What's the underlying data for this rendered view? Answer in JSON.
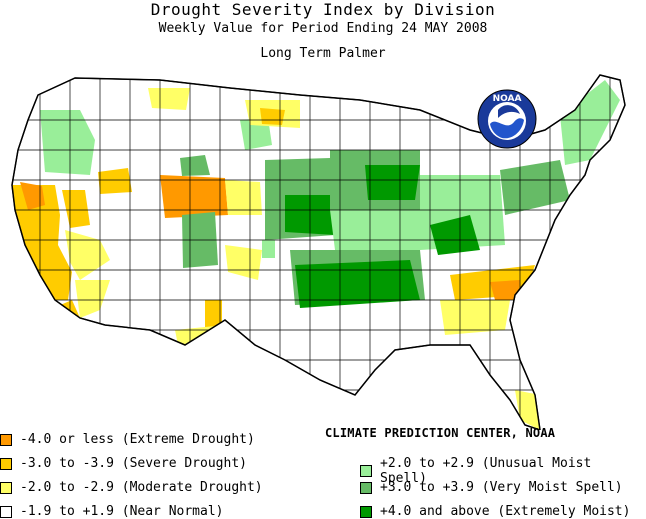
{
  "titles": {
    "main": "Drought Severity Index by Division",
    "sub": "Weekly Value for Period Ending 24 MAY 2008",
    "index": "Long Term Palmer"
  },
  "logo": {
    "text": "NOAA"
  },
  "credit": "CLIMATE PREDICTION CENTER, NOAA",
  "colors": {
    "extreme_drought": "#ff9900",
    "severe_drought": "#ffcc00",
    "moderate_drought": "#ffff66",
    "near_normal": "#ffffff",
    "unusual_moist": "#99ee99",
    "very_moist": "#66bb66",
    "extremely_moist": "#009900"
  },
  "legend": {
    "left": [
      {
        "label": "-4.0 or less (Extreme Drought)",
        "color": "#ff9900"
      },
      {
        "label": "-3.0 to -3.9 (Severe Drought)",
        "color": "#ffcc00"
      },
      {
        "label": "-2.0 to -2.9 (Moderate Drought)",
        "color": "#ffff66"
      },
      {
        "label": "-1.9 to +1.9 (Near Normal)",
        "color": "#ffffff"
      }
    ],
    "right": [
      {
        "label": "+2.0 to +2.9 (Unusual Moist Spell)",
        "color": "#99ee99"
      },
      {
        "label": "+3.0 to +3.9 (Very Moist Spell)",
        "color": "#66bb66"
      },
      {
        "label": "+4.0 and above (Extremely Moist)",
        "color": "#009900"
      }
    ]
  }
}
